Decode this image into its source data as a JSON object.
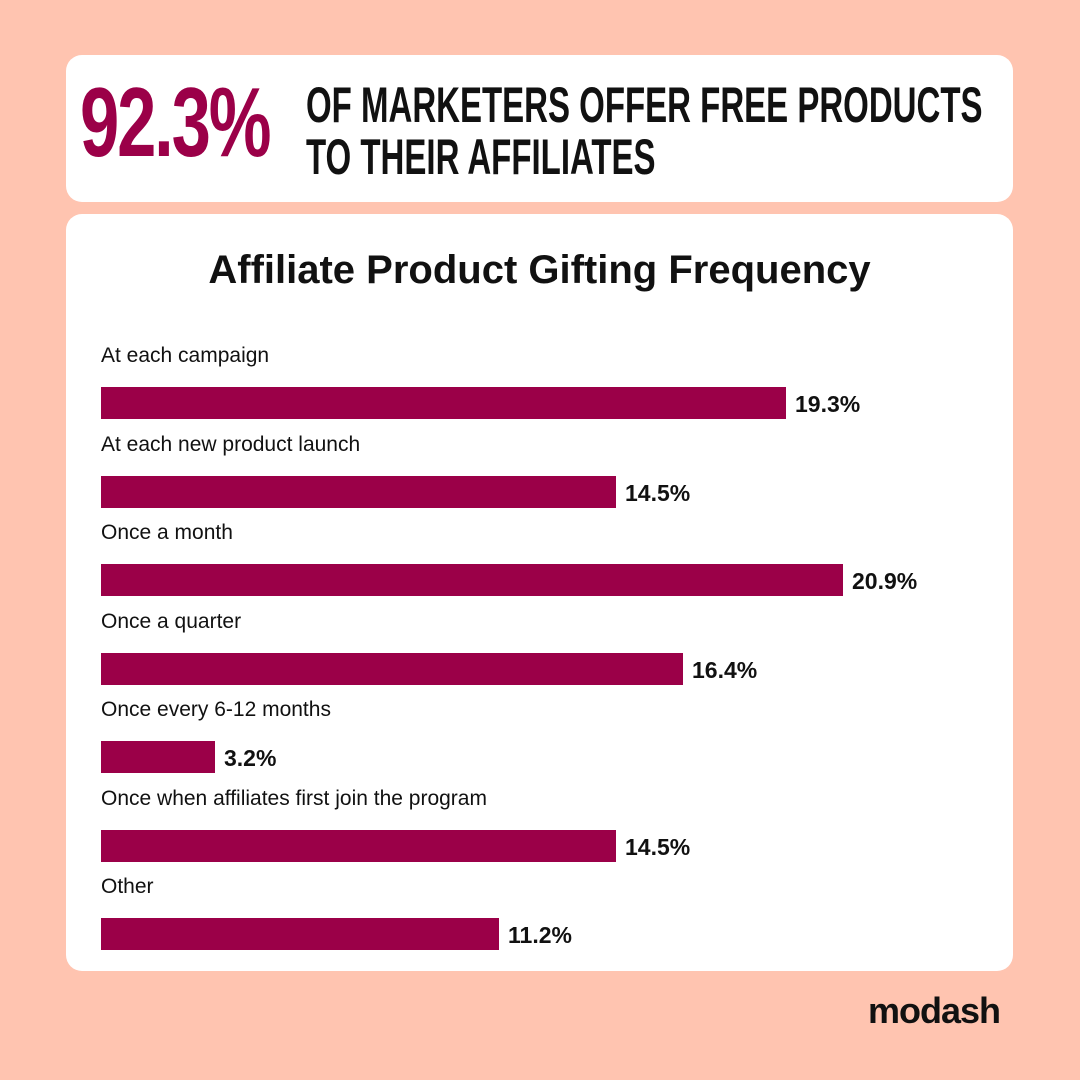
{
  "headline": {
    "stat": "92.3%",
    "line1": "Of marketers offer free products",
    "line2": "to their affiliates"
  },
  "colors": {
    "background": "#FFC4B0",
    "accent": "#9B0048",
    "card": "#FFFFFF",
    "text": "#111111"
  },
  "brand": "modash",
  "chart_data": {
    "type": "bar",
    "orientation": "horizontal",
    "title": "Affiliate Product Gifting Frequency",
    "categories": [
      "At each campaign",
      "At each new product launch",
      "Once a month",
      "Once a quarter",
      "Once every 6-12 months",
      "Once when affiliates first join the program",
      "Other"
    ],
    "values": [
      19.3,
      14.5,
      20.9,
      16.4,
      3.2,
      14.5,
      11.2
    ],
    "value_labels": [
      "19.3%",
      "14.5%",
      "20.9%",
      "16.4%",
      "3.2%",
      "14.5%",
      "11.2%"
    ],
    "xlim": [
      0,
      20.9
    ],
    "grid": false,
    "legend": "none"
  }
}
